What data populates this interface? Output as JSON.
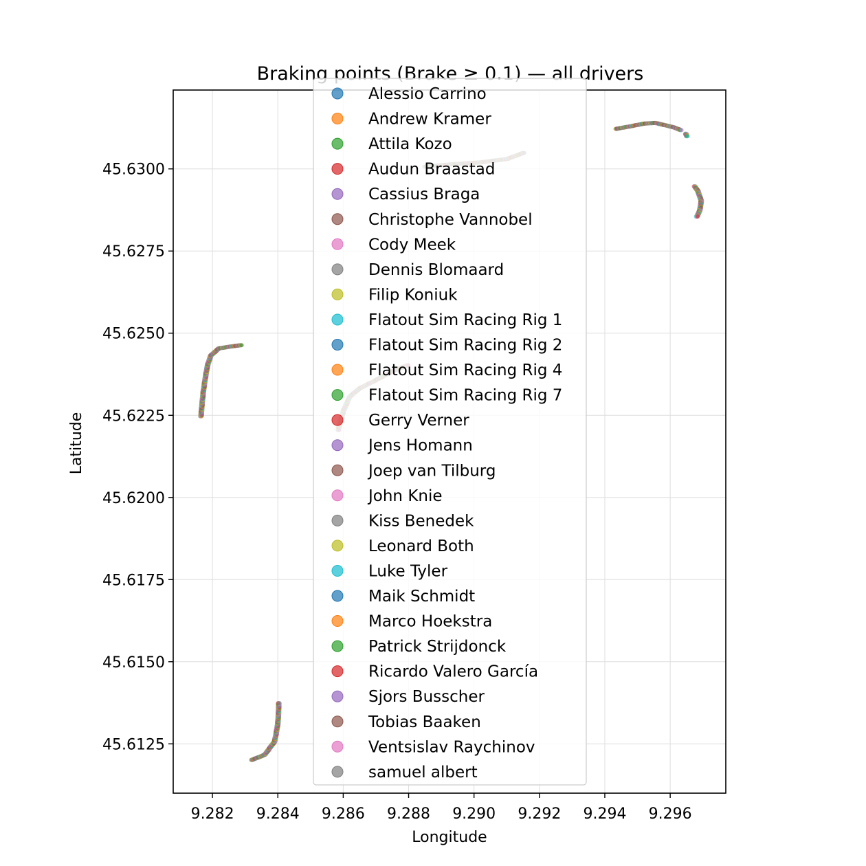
{
  "chart_data": {
    "type": "scatter",
    "title": "Braking points (Brake ≥ 0.1) — all drivers",
    "xlabel": "Longitude",
    "ylabel": "Latitude",
    "xlim": [
      9.2808,
      9.2977
    ],
    "ylim": [
      45.611,
      45.6324
    ],
    "x_ticks": [
      "9.282",
      "9.284",
      "9.286",
      "9.288",
      "9.290",
      "9.292",
      "9.294",
      "9.296"
    ],
    "y_ticks": [
      "45.6125",
      "45.6150",
      "45.6175",
      "45.6200",
      "45.6225",
      "45.6250",
      "45.6275",
      "45.6300"
    ],
    "grid": true,
    "legend_position": "center-top",
    "palette": [
      "#1f77b4",
      "#ff7f0e",
      "#2ca02c",
      "#d62728",
      "#9467bd",
      "#8c564b",
      "#e377c2",
      "#7f7f7f",
      "#bcbd22",
      "#17becf"
    ],
    "series": [
      {
        "name": "Alessio Carrino"
      },
      {
        "name": "Andrew Kramer"
      },
      {
        "name": "Attila Kozo"
      },
      {
        "name": "Audun Braastad"
      },
      {
        "name": "Cassius Braga"
      },
      {
        "name": "Christophe Vannobel"
      },
      {
        "name": "Cody Meek"
      },
      {
        "name": "Dennis Blomaard"
      },
      {
        "name": "Filip Koniuk"
      },
      {
        "name": "Flatout Sim Racing Rig 1"
      },
      {
        "name": "Flatout Sim Racing Rig 2"
      },
      {
        "name": "Flatout Sim Racing Rig 4"
      },
      {
        "name": "Flatout Sim Racing Rig 7"
      },
      {
        "name": "Gerry Verner"
      },
      {
        "name": "Jens Homann"
      },
      {
        "name": "Joep van Tilburg"
      },
      {
        "name": "John Knie"
      },
      {
        "name": "Kiss Benedek"
      },
      {
        "name": "Leonard Both"
      },
      {
        "name": "Luke Tyler"
      },
      {
        "name": "Maik Schmidt"
      },
      {
        "name": "Marco Hoekstra"
      },
      {
        "name": "Patrick Strijdonck"
      },
      {
        "name": "Ricardo Valero García"
      },
      {
        "name": "Sjors Busscher"
      },
      {
        "name": "Tobias Baaken"
      },
      {
        "name": "Ventsislav Raychinov"
      },
      {
        "name": "samuel albert"
      }
    ],
    "braking_zones": [
      {
        "name": "zone-left",
        "points": [
          [
            9.28165,
            45.62245
          ],
          [
            9.28168,
            45.6228
          ],
          [
            9.28172,
            45.6232
          ],
          [
            9.28178,
            45.6236
          ],
          [
            9.28185,
            45.624
          ],
          [
            9.28195,
            45.6243
          ],
          [
            9.2822,
            45.62452
          ],
          [
            9.2826,
            45.62458
          ],
          [
            9.2829,
            45.62462
          ]
        ]
      },
      {
        "name": "zone-bottom",
        "points": [
          [
            9.2832,
            45.61199
          ],
          [
            9.2836,
            45.61215
          ],
          [
            9.2839,
            45.61255
          ],
          [
            9.28395,
            45.6128
          ],
          [
            9.284,
            45.6131
          ],
          [
            9.28402,
            45.6134
          ],
          [
            9.28403,
            45.61375
          ]
        ]
      },
      {
        "name": "zone-mid-lower",
        "points": [
          [
            9.28585,
            45.62203
          ],
          [
            9.286,
            45.6226
          ],
          [
            9.2862,
            45.62305
          ],
          [
            9.2865,
            45.6233
          ],
          [
            9.287,
            45.62355
          ],
          [
            9.2875,
            45.62382
          ],
          [
            9.288,
            45.62402
          ]
        ]
      },
      {
        "name": "zone-mid-upper",
        "points": [
          [
            9.2885,
            45.63005
          ],
          [
            9.2893,
            45.63012
          ],
          [
            9.2902,
            45.63018
          ],
          [
            9.291,
            45.63028
          ],
          [
            9.29155,
            45.63048
          ]
        ]
      },
      {
        "name": "zone-top-right",
        "points": [
          [
            9.29435,
            45.6312
          ],
          [
            9.2948,
            45.63128
          ],
          [
            9.2952,
            45.63136
          ],
          [
            9.29555,
            45.63138
          ],
          [
            9.2958,
            45.63132
          ],
          [
            9.2961,
            45.63125
          ],
          [
            9.29635,
            45.63115
          ]
        ]
      },
      {
        "name": "zone-right-small",
        "points": [
          [
            9.29648,
            45.63105
          ],
          [
            9.29652,
            45.63095
          ]
        ]
      },
      {
        "name": "zone-far-right",
        "points": [
          [
            9.29675,
            45.62945
          ],
          [
            9.29685,
            45.6293
          ],
          [
            9.29695,
            45.629
          ],
          [
            9.2969,
            45.6287
          ],
          [
            9.2968,
            45.6285
          ]
        ]
      }
    ]
  }
}
